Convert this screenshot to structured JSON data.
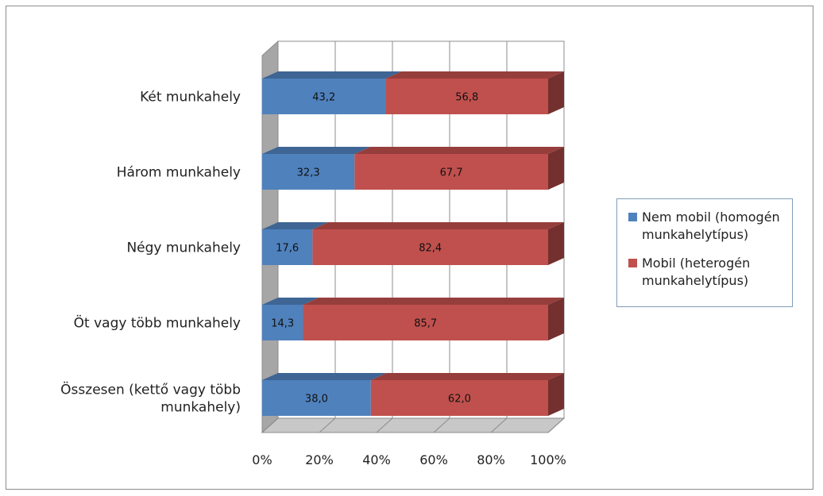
{
  "chart_data": {
    "type": "bar",
    "orientation": "horizontal",
    "stacked": "percent",
    "style": "3d",
    "categories": [
      [
        "Két munkahely"
      ],
      [
        "Három munkahely"
      ],
      [
        "Négy munkahely"
      ],
      [
        "Öt vagy több munkahely"
      ],
      [
        "Összesen (kettő vagy több",
        "munkahely)"
      ]
    ],
    "series": [
      {
        "name": "Nem mobil (homogén munkahelytípus)",
        "legend_lines": [
          "Nem mobil (homogén",
          "munkahelytípus)"
        ],
        "color": "#4f81bd",
        "values": [
          43.2,
          32.3,
          17.6,
          14.3,
          38.0
        ],
        "labels": [
          "43,2",
          "32,3",
          "17,6",
          "14,3",
          "38,0"
        ]
      },
      {
        "name": "Mobil (heterogén munkahelytípus)",
        "legend_lines": [
          "Mobil (heterogén",
          "munkahelytípus)"
        ],
        "color": "#c0504d",
        "values": [
          56.8,
          67.7,
          82.4,
          85.7,
          62.0
        ],
        "labels": [
          "56,8",
          "67,7",
          "82,4",
          "85,7",
          "62,0"
        ]
      }
    ],
    "x_ticks": [
      "0%",
      "20%",
      "40%",
      "60%",
      "80%",
      "100%"
    ],
    "xlim": [
      0,
      100
    ],
    "grid": true,
    "legend_position": "right",
    "title": "",
    "xlabel": "",
    "ylabel": ""
  }
}
